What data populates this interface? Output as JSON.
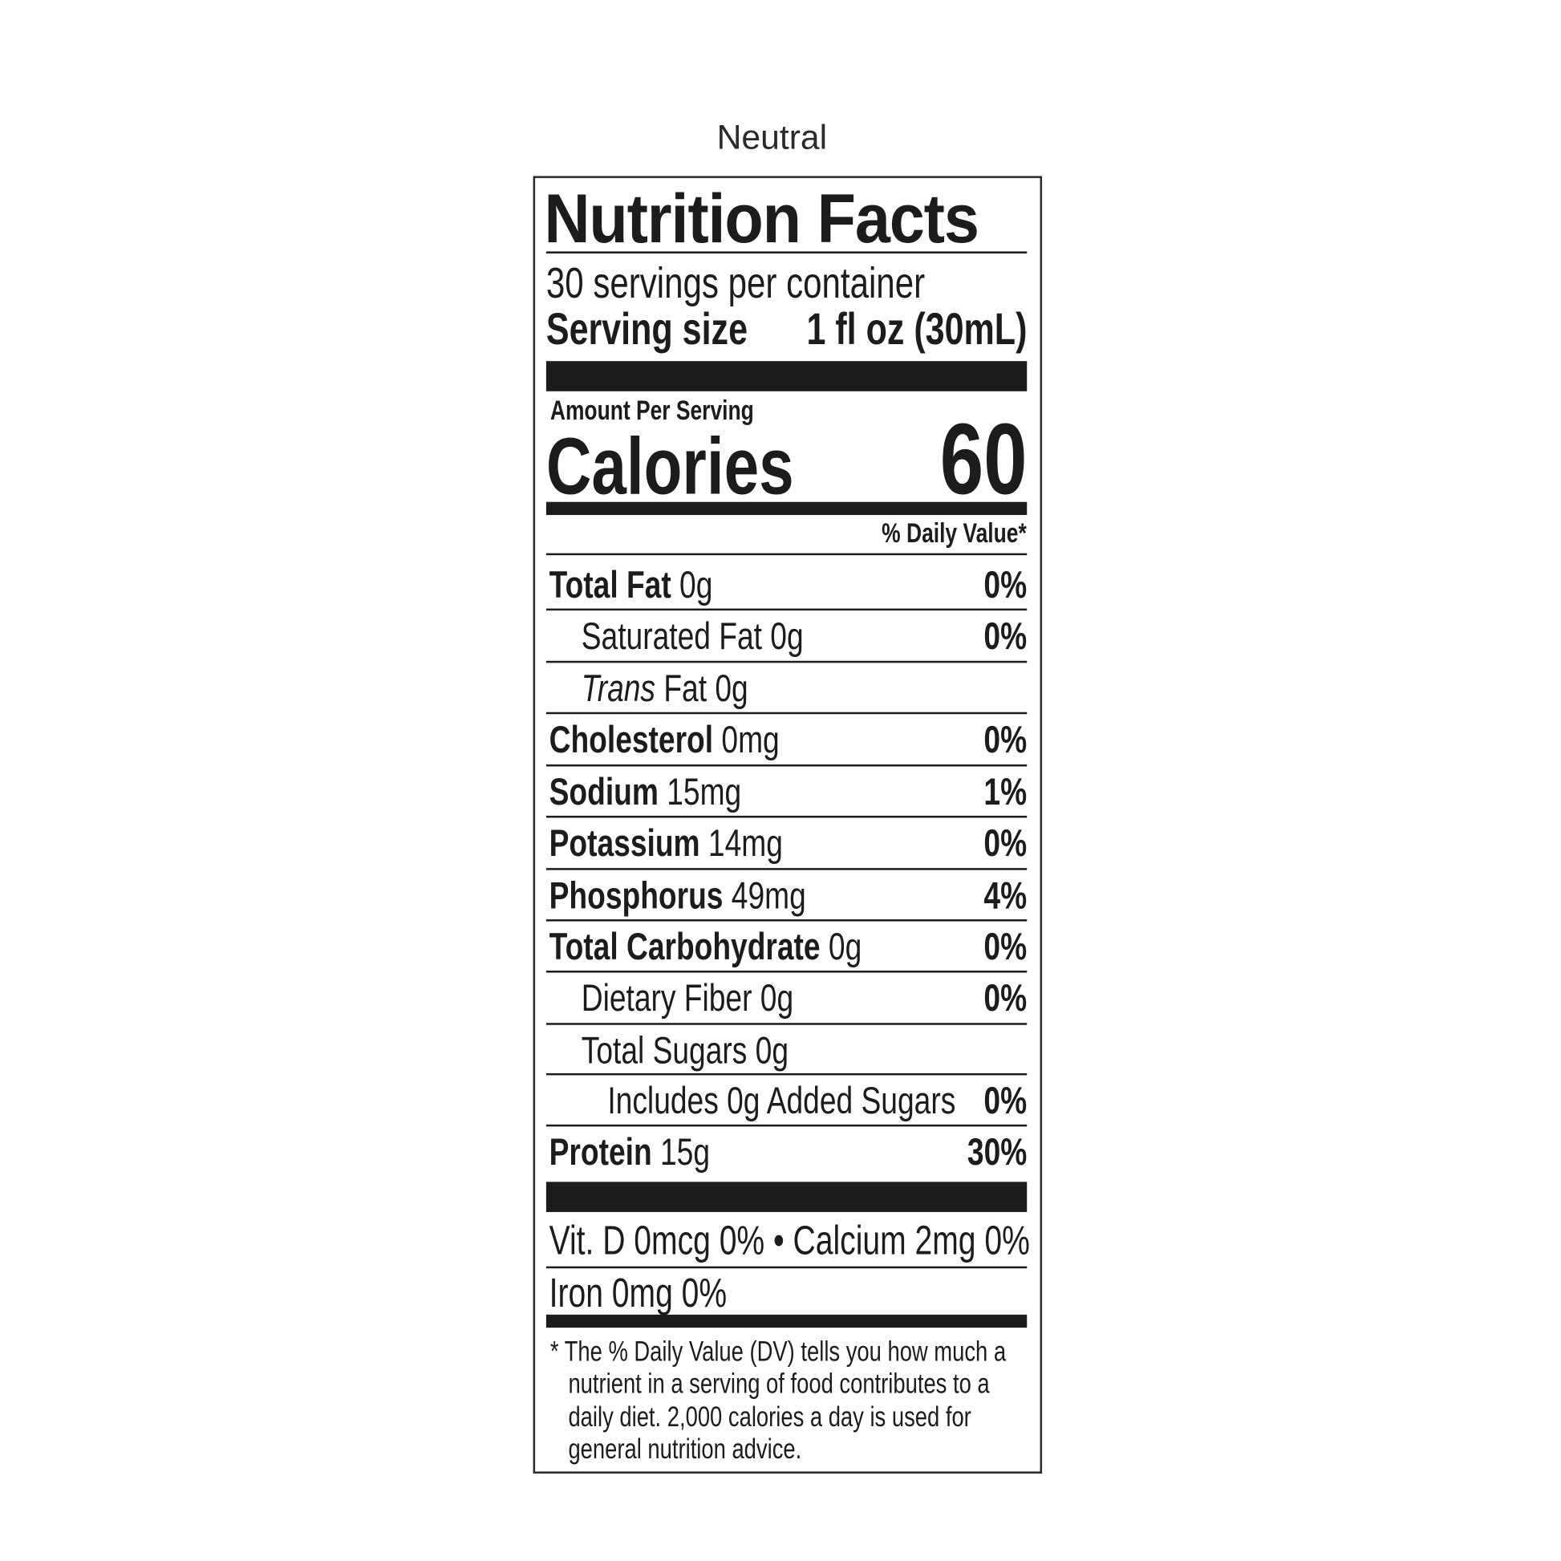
{
  "flavor": "Neutral",
  "title": "Nutrition Facts",
  "servings_per_container": "30 servings per container",
  "serving_size_label": "Serving size",
  "serving_size_value": "1 fl oz (30mL)",
  "amount_per_serving": "Amount Per Serving",
  "calories_label": "Calories",
  "calories_value": "60",
  "daily_value_header": "% Daily Value*",
  "nutrients": [
    {
      "name": "Total Fat",
      "amount": "0g",
      "dv": "0%"
    },
    {
      "name": "Saturated Fat",
      "amount": "0g",
      "dv": "0%"
    },
    {
      "name_italic": "Trans",
      "name": "Fat",
      "amount": "0g",
      "dv": ""
    },
    {
      "name": "Cholesterol",
      "amount": "0mg",
      "dv": "0%"
    },
    {
      "name": "Sodium",
      "amount": "15mg",
      "dv": "1%"
    },
    {
      "name": "Potassium",
      "amount": "14mg",
      "dv": "0%"
    },
    {
      "name": "Phosphorus",
      "amount": "49mg",
      "dv": "4%"
    },
    {
      "name": "Total Carbohydrate",
      "amount": "0g",
      "dv": "0%"
    },
    {
      "name": "Dietary Fiber",
      "amount": "0g",
      "dv": "0%"
    },
    {
      "name": "Total Sugars",
      "amount": "0g",
      "dv": ""
    },
    {
      "name": "Includes 0g Added Sugars",
      "amount": "",
      "dv": "0%"
    },
    {
      "name": "Protein",
      "amount": "15g",
      "dv": "30%"
    }
  ],
  "micros": {
    "line1": "Vit. D 0mcg 0% • Calcium 2mg 0%",
    "line2": "Iron 0mg  0%"
  },
  "footnote": {
    "lines": [
      "* The % Daily Value (DV) tells you how much a",
      "nutrient in a serving of food contributes to a",
      "daily diet. 2,000 calories a day is used for",
      "general nutrition advice."
    ]
  }
}
